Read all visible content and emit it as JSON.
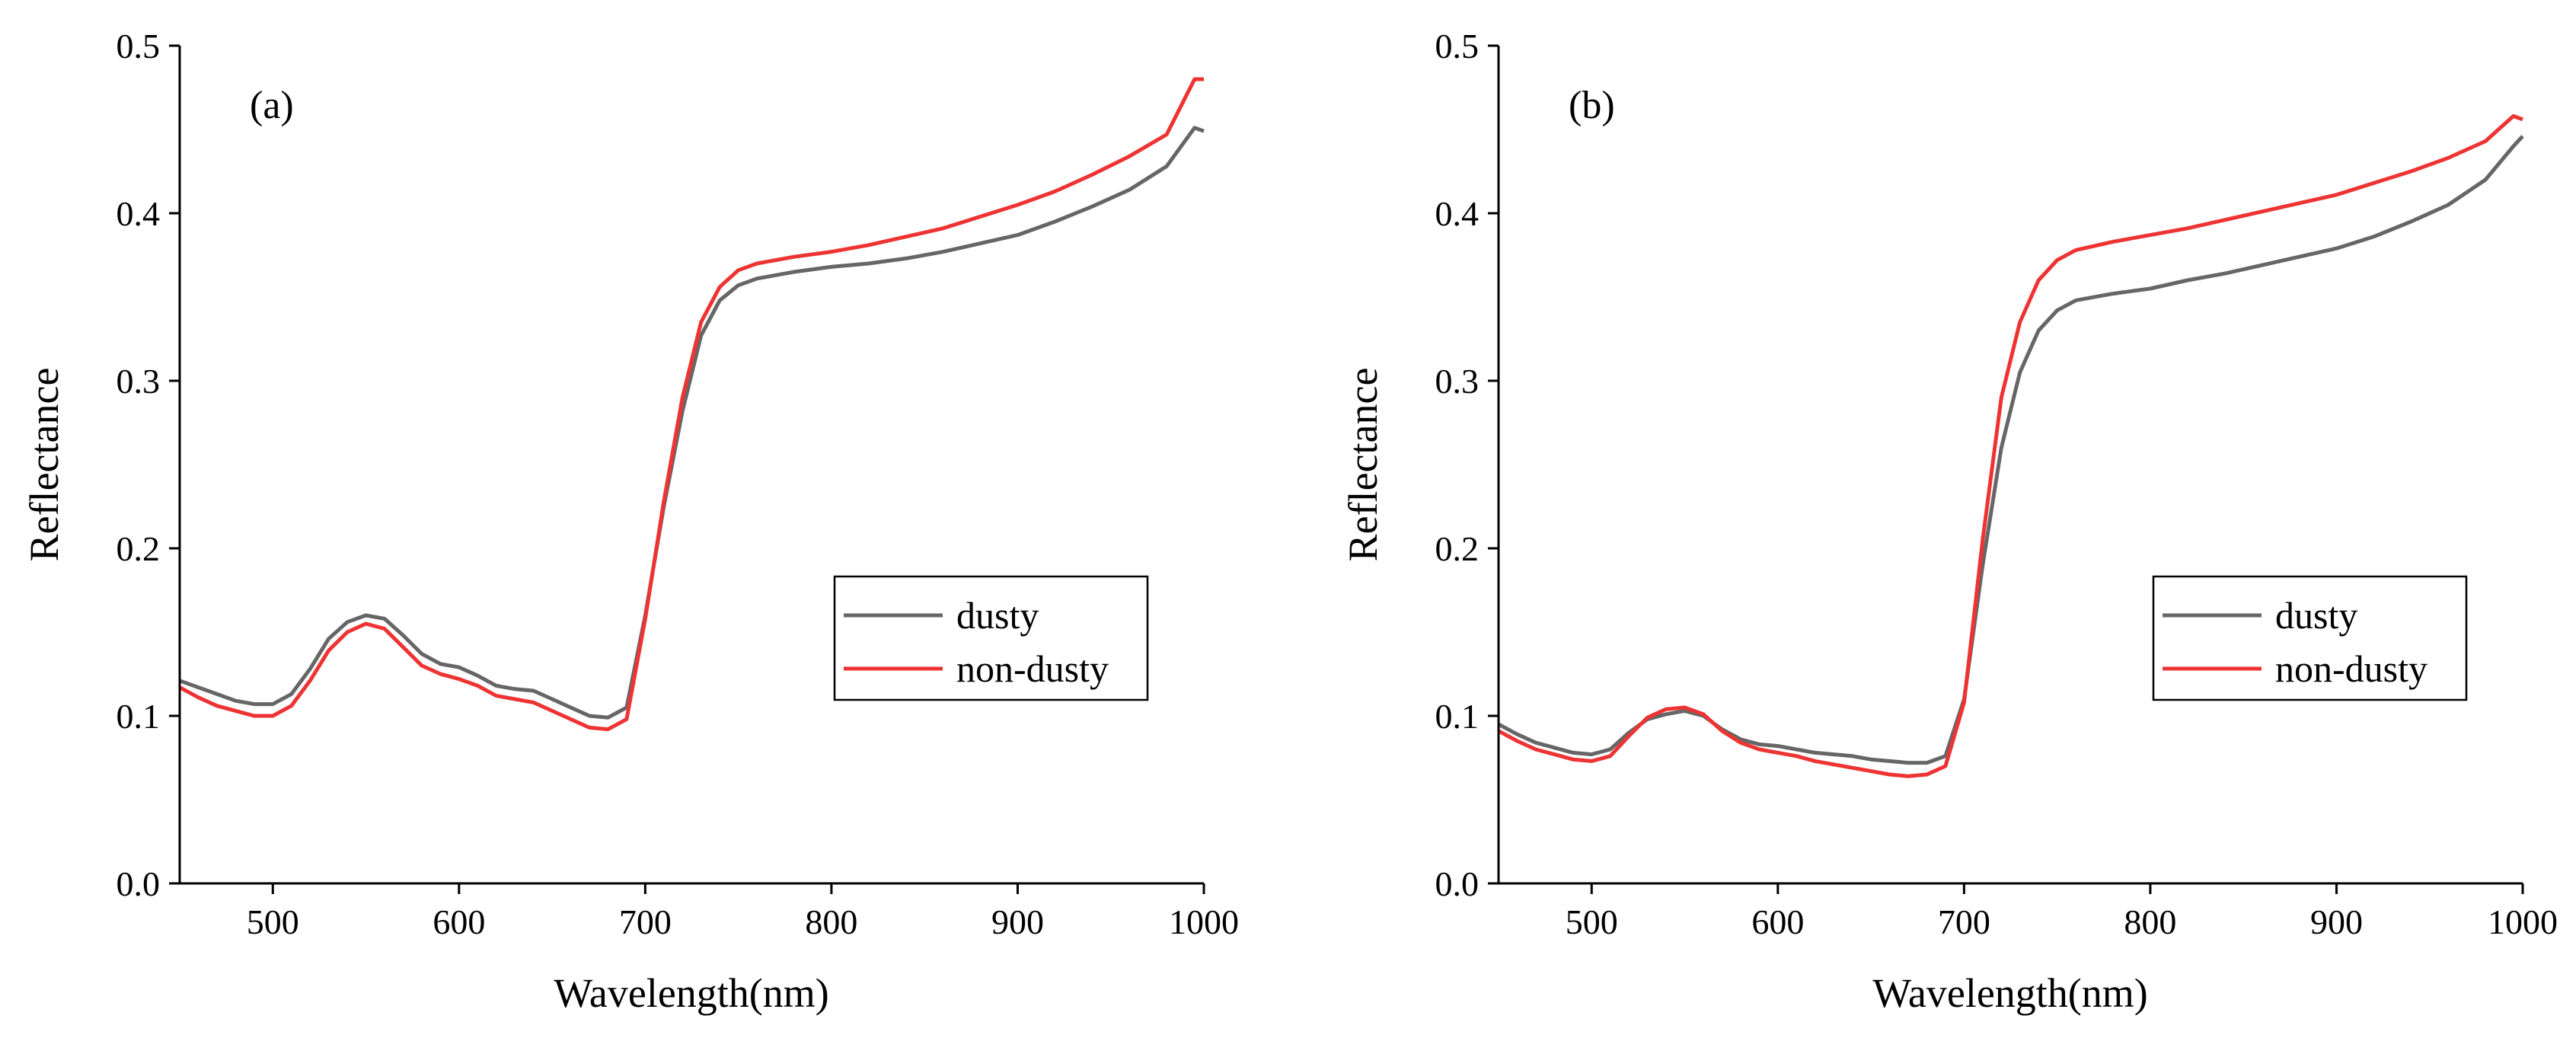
{
  "colors": {
    "dusty": "#666666",
    "non_dusty": "#ee3333",
    "axis": "#000000"
  },
  "chart_data": [
    {
      "type": "line",
      "panel_label": "(a)",
      "xlabel": "Wavelength(nm)",
      "ylabel": "Reflectance",
      "xlim": [
        450,
        1000
      ],
      "ylim": [
        0.0,
        0.5
      ],
      "xticks": [
        "500",
        "600",
        "700",
        "800",
        "900",
        "1000"
      ],
      "yticks": [
        "0.0",
        "0.1",
        "0.2",
        "0.3",
        "0.4",
        "0.5"
      ],
      "legend": [
        "dusty",
        "non-dusty"
      ],
      "legend_position": "center-right",
      "series": [
        {
          "name": "dusty",
          "x": [
            450,
            460,
            470,
            480,
            490,
            500,
            510,
            520,
            530,
            540,
            550,
            560,
            570,
            580,
            590,
            600,
            610,
            620,
            630,
            640,
            650,
            660,
            670,
            680,
            690,
            700,
            710,
            720,
            730,
            740,
            750,
            760,
            780,
            800,
            820,
            840,
            860,
            880,
            900,
            920,
            940,
            960,
            980,
            995,
            1000
          ],
          "y": [
            0.121,
            0.117,
            0.113,
            0.109,
            0.107,
            0.107,
            0.113,
            0.128,
            0.146,
            0.156,
            0.16,
            0.158,
            0.148,
            0.137,
            0.131,
            0.129,
            0.124,
            0.118,
            0.116,
            0.115,
            0.11,
            0.105,
            0.1,
            0.099,
            0.105,
            0.16,
            0.225,
            0.282,
            0.327,
            0.348,
            0.357,
            0.361,
            0.365,
            0.368,
            0.37,
            0.373,
            0.377,
            0.382,
            0.387,
            0.395,
            0.404,
            0.414,
            0.428,
            0.451,
            0.449
          ]
        },
        {
          "name": "non-dusty",
          "x": [
            450,
            460,
            470,
            480,
            490,
            500,
            510,
            520,
            530,
            540,
            550,
            560,
            570,
            580,
            590,
            600,
            610,
            620,
            630,
            640,
            650,
            660,
            670,
            680,
            690,
            700,
            710,
            720,
            730,
            740,
            750,
            760,
            780,
            800,
            820,
            840,
            860,
            880,
            900,
            920,
            940,
            960,
            980,
            995,
            1000
          ],
          "y": [
            0.117,
            0.111,
            0.106,
            0.103,
            0.1,
            0.1,
            0.106,
            0.121,
            0.139,
            0.15,
            0.155,
            0.152,
            0.141,
            0.13,
            0.125,
            0.122,
            0.118,
            0.112,
            0.11,
            0.108,
            0.103,
            0.098,
            0.093,
            0.092,
            0.098,
            0.158,
            0.228,
            0.29,
            0.335,
            0.356,
            0.366,
            0.37,
            0.374,
            0.377,
            0.381,
            0.386,
            0.391,
            0.398,
            0.405,
            0.413,
            0.423,
            0.434,
            0.447,
            0.48,
            0.48
          ]
        }
      ]
    },
    {
      "type": "line",
      "panel_label": "(b)",
      "xlabel": "Wavelength(nm)",
      "ylabel": "Reflectance",
      "xlim": [
        450,
        1000
      ],
      "ylim": [
        0.0,
        0.5
      ],
      "xticks": [
        "500",
        "600",
        "700",
        "800",
        "900",
        "1000"
      ],
      "yticks": [
        "0.0",
        "0.1",
        "0.2",
        "0.3",
        "0.4",
        "0.5"
      ],
      "legend": [
        "dusty",
        "non-dusty"
      ],
      "legend_position": "center-right",
      "series": [
        {
          "name": "dusty",
          "x": [
            450,
            460,
            470,
            480,
            490,
            500,
            510,
            520,
            530,
            540,
            550,
            560,
            570,
            580,
            590,
            600,
            610,
            620,
            630,
            640,
            650,
            660,
            670,
            680,
            690,
            700,
            710,
            720,
            730,
            740,
            750,
            760,
            780,
            800,
            820,
            840,
            860,
            880,
            900,
            920,
            940,
            960,
            980,
            995,
            1000
          ],
          "y": [
            0.095,
            0.089,
            0.084,
            0.081,
            0.078,
            0.077,
            0.08,
            0.09,
            0.098,
            0.101,
            0.103,
            0.1,
            0.092,
            0.086,
            0.083,
            0.082,
            0.08,
            0.078,
            0.077,
            0.076,
            0.074,
            0.073,
            0.072,
            0.072,
            0.076,
            0.11,
            0.19,
            0.26,
            0.305,
            0.33,
            0.342,
            0.348,
            0.352,
            0.355,
            0.36,
            0.364,
            0.369,
            0.374,
            0.379,
            0.386,
            0.395,
            0.405,
            0.42,
            0.44,
            0.446
          ]
        },
        {
          "name": "non-dusty",
          "x": [
            450,
            460,
            470,
            480,
            490,
            500,
            510,
            520,
            530,
            540,
            550,
            560,
            570,
            580,
            590,
            600,
            610,
            620,
            630,
            640,
            650,
            660,
            670,
            680,
            690,
            700,
            710,
            720,
            730,
            740,
            750,
            760,
            780,
            800,
            820,
            840,
            860,
            880,
            900,
            920,
            940,
            960,
            980,
            995,
            1000
          ],
          "y": [
            0.091,
            0.085,
            0.08,
            0.077,
            0.074,
            0.073,
            0.076,
            0.088,
            0.099,
            0.104,
            0.105,
            0.101,
            0.091,
            0.084,
            0.08,
            0.078,
            0.076,
            0.073,
            0.071,
            0.069,
            0.067,
            0.065,
            0.064,
            0.065,
            0.07,
            0.108,
            0.205,
            0.29,
            0.335,
            0.36,
            0.372,
            0.378,
            0.383,
            0.387,
            0.391,
            0.396,
            0.401,
            0.406,
            0.411,
            0.418,
            0.425,
            0.433,
            0.443,
            0.458,
            0.456
          ]
        }
      ]
    }
  ]
}
